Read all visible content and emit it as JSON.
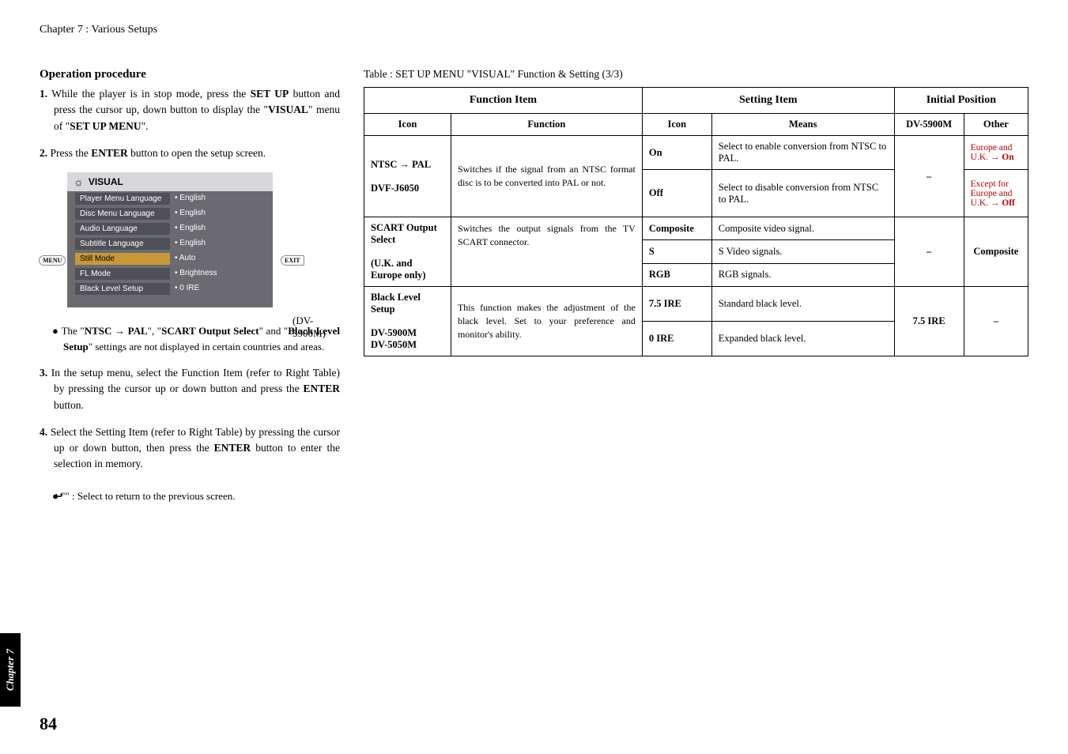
{
  "chapter_header": "Chapter 7 : Various Setups",
  "operation_procedure_title": "Operation procedure",
  "steps": {
    "s1": {
      "num": "1.",
      "text_a": "While the player is in stop mode, press the ",
      "b1": "SET UP",
      "text_b": " button and press the cursor up, down button to display the \"",
      "b2": "VISUAL",
      "text_c": "\" menu of \"",
      "b3": "SET UP MENU",
      "text_d": "\"."
    },
    "s2": {
      "num": "2.",
      "text_a": "Press the ",
      "b1": "ENTER",
      "text_b": " button to open the setup screen."
    },
    "s3": {
      "num": "3.",
      "text_a": "In the setup menu, select the Function Item (refer to Right Table) by pressing the cursor up or down button and press the ",
      "b1": "ENTER",
      "text_b": " button."
    },
    "s4": {
      "num": "4.",
      "text_a": "Select the Setting Item (refer to Right Table) by pressing the cursor up or down button, then press the ",
      "b1": "ENTER",
      "text_b": " button to enter the selection in memory."
    }
  },
  "bullet1": {
    "pre": "The \"",
    "b1": "NTSC ",
    "b1b": " PAL",
    "mid1": "\", \"",
    "b2": "SCART Output Select",
    "mid2": "\" and \"",
    "b3": "Black Level Setup",
    "post": "\" settings are not displayed in certain countries and areas."
  },
  "bullet2": {
    "quote": "\"",
    "icon": "↩",
    "quote2": "\"",
    "text": "  :  Select to return to the previous screen."
  },
  "osd": {
    "title": "VISUAL",
    "rows": [
      {
        "label": "Player Menu Language",
        "value": "English"
      },
      {
        "label": "Disc Menu Language",
        "value": "English"
      },
      {
        "label": "Audio Language",
        "value": "English"
      },
      {
        "label": "Subtitle Language",
        "value": "English"
      },
      {
        "label": "Still Mode",
        "value": "Auto"
      },
      {
        "label": "FL Mode",
        "value": "Brightness"
      },
      {
        "label": "Black Level Setup",
        "value": "0 IRE"
      }
    ],
    "menu_tag": "MENU",
    "exit_tag": "EXIT",
    "model": "(DV-5900M)"
  },
  "table_caption": "Table : SET UP MENU \"VISUAL\" Function & Setting (3/3)",
  "table": {
    "h_function_item": "Function Item",
    "h_setting_item": "Setting Item",
    "h_initial_position": "Initial Position",
    "h_icon": "Icon",
    "h_function": "Function",
    "h_icon2": "Icon",
    "h_means": "Means",
    "h_dv5900m": "DV-5900M",
    "h_other": "Other",
    "rows": [
      {
        "icon_l1": "NTSC ",
        "icon_l1b": " PAL",
        "icon_l2": "DVF-J6050",
        "func": "Switches if the signal from an NTSC format disc is to be converted into PAL or not.",
        "settings": [
          {
            "icon": "On",
            "means": "Select to enable conversion from NTSC to PAL."
          },
          {
            "icon": "Off",
            "means": "Select to disable conversion from NTSC to PAL."
          }
        ],
        "init1": "–",
        "init2_a": "Europe and U.K. ",
        "init2_a_b": " On",
        "init2_b": "Except for Europe and U.K. ",
        "init2_b_b": " Off"
      },
      {
        "icon_l1": "SCART Output Select",
        "icon_l2": "(U.K. and Europe only)",
        "func": "Switches the output signals from the TV SCART connector.",
        "settings": [
          {
            "icon": "Composite",
            "means": "Composite video signal."
          },
          {
            "icon": "S",
            "means": "S Video signals."
          },
          {
            "icon": "RGB",
            "means": "RGB signals."
          }
        ],
        "init1": "–",
        "init2": "Composite"
      },
      {
        "icon_l1": "Black Level Setup",
        "icon_l2": "DV-5900M",
        "icon_l3": "DV-5050M",
        "func": "This function makes the adjustment of the black level. Set to your preference and monitor's ability.",
        "settings": [
          {
            "icon": "7.5 IRE",
            "means": "Standard black level."
          },
          {
            "icon": "0 IRE",
            "means": "Expanded black level."
          }
        ],
        "init1": "7.5 IRE",
        "init2": "–"
      }
    ]
  },
  "chapter_tab": "Chapter 7",
  "page_number": "84"
}
